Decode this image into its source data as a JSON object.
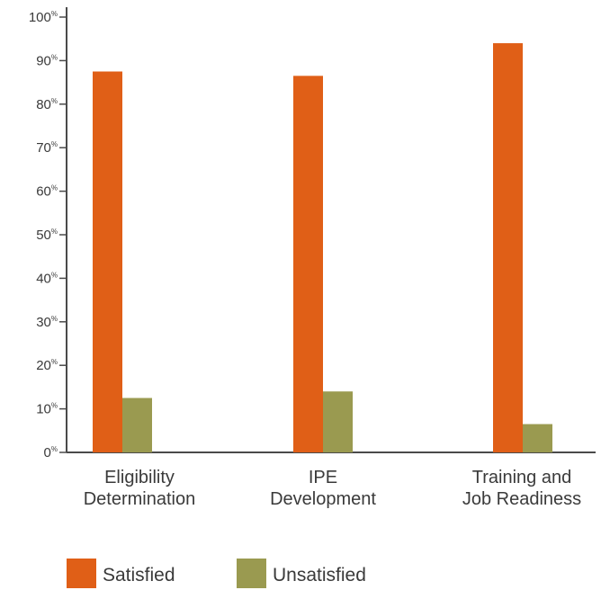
{
  "chart_data": {
    "type": "bar",
    "categories": [
      [
        "Eligibility",
        "Determination"
      ],
      [
        "IPE",
        "Development"
      ],
      [
        "Training and",
        "Job Readiness"
      ]
    ],
    "series": [
      {
        "name": "Satisfied",
        "color": "#e05f17",
        "values": [
          87.5,
          86.5,
          94
        ]
      },
      {
        "name": "Unsatisfied",
        "color": "#9a9a50",
        "values": [
          12.5,
          14,
          6.5
        ]
      }
    ],
    "y_ticks": [
      0,
      10,
      20,
      30,
      40,
      50,
      60,
      70,
      80,
      90,
      100
    ],
    "y_tick_suffix": "%",
    "ylim": [
      0,
      100
    ],
    "grid": false,
    "legend_position": "bottom-left",
    "title": "",
    "xlabel": "",
    "ylabel": ""
  }
}
